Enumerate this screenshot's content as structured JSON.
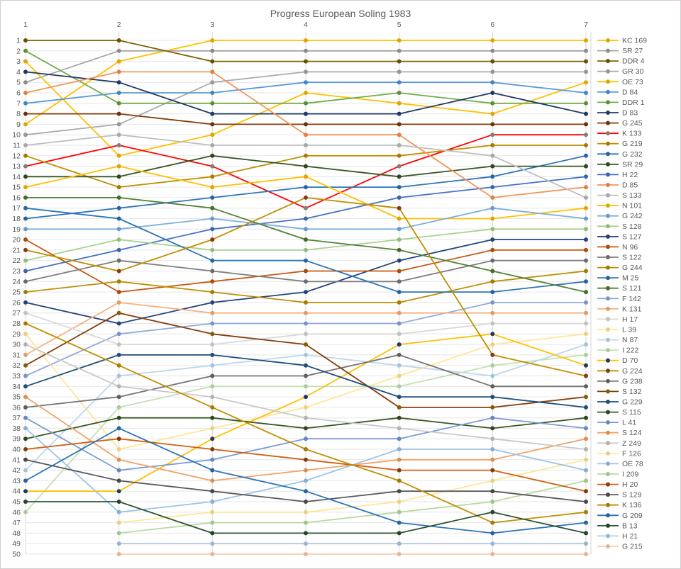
{
  "window": {
    "background": "#FFFFFF",
    "border_color": "#D0CECE",
    "text_color": "#595959",
    "gridline_color_h": "#E6E6E6",
    "gridline_color_v": "#D9D9D9"
  },
  "chart_data": {
    "type": "line",
    "subtype": "bump-chart-positions",
    "title": "Progress European Soling 1983",
    "x_ticks": [
      "1",
      "2",
      "3",
      "4",
      "5",
      "6",
      "7"
    ],
    "y_ticks": [
      "1",
      "2",
      "3",
      "4",
      "5",
      "6",
      "7",
      "8",
      "9",
      "10",
      "11",
      "12",
      "13",
      "14",
      "15",
      "16",
      "17",
      "18",
      "19",
      "20",
      "21",
      "22",
      "23",
      "24",
      "25",
      "26",
      "27",
      "28",
      "29",
      "30",
      "31",
      "32",
      "33",
      "34",
      "35",
      "36",
      "37",
      "38",
      "39",
      "40",
      "41",
      "42",
      "43",
      "44",
      "45",
      "46",
      "47",
      "48",
      "49",
      "50"
    ],
    "y_range": [
      1,
      50
    ],
    "x_range": [
      1,
      7
    ],
    "grid": true,
    "legend_position": "right",
    "series": [
      {
        "name": "KC 169",
        "color": "#FFC000",
        "marker": "#E0A500",
        "values": [
          9,
          3,
          1,
          1,
          1,
          1,
          1
        ]
      },
      {
        "name": "SR 27",
        "color": "#A5A5A5",
        "marker": "#8C8C8C",
        "values": [
          5,
          2,
          2,
          2,
          2,
          2,
          2
        ]
      },
      {
        "name": "DDR 4",
        "color": "#7F6000",
        "marker": "#6B5000",
        "values": [
          1,
          1,
          3,
          3,
          3,
          3,
          3
        ]
      },
      {
        "name": "GR 30",
        "color": "#ABABAB",
        "marker": "#969696",
        "values": [
          10,
          9,
          5,
          4,
          4,
          4,
          4
        ]
      },
      {
        "name": "OE 73",
        "color": "#FFC000",
        "marker": "#E0A500",
        "values": [
          3,
          12,
          10,
          6,
          7,
          8,
          5
        ]
      },
      {
        "name": "D 84",
        "color": "#5B9BD5",
        "marker": "#4285C0",
        "values": [
          7,
          6,
          6,
          5,
          5,
          5,
          6
        ]
      },
      {
        "name": "DDR 1",
        "color": "#70AD47",
        "marker": "#5B9035",
        "values": [
          2,
          7,
          7,
          7,
          6,
          7,
          7
        ]
      },
      {
        "name": "D 83",
        "color": "#1F3864",
        "marker": "#1F3864",
        "values": [
          4,
          5,
          8,
          8,
          8,
          6,
          8
        ]
      },
      {
        "name": "G 245",
        "color": "#843C0C",
        "marker": "#6E3209",
        "values": [
          8,
          8,
          9,
          9,
          9,
          9,
          9
        ]
      },
      {
        "name": "K 133",
        "color": "#FF0000",
        "marker": "#7F7F7F",
        "values": [
          13,
          11,
          13,
          17,
          13,
          10,
          10
        ]
      },
      {
        "name": "G 219",
        "color": "#BF8F00",
        "marker": "#A57B00",
        "values": [
          12,
          15,
          14,
          12,
          12,
          11,
          11
        ]
      },
      {
        "name": "G 232",
        "color": "#2E75B6",
        "marker": "#2764A0",
        "values": [
          18,
          17,
          16,
          15,
          15,
          14,
          12
        ]
      },
      {
        "name": "SR 29",
        "color": "#375623",
        "marker": "#2E481D",
        "values": [
          14,
          14,
          12,
          13,
          14,
          13,
          13
        ]
      },
      {
        "name": "H 22",
        "color": "#4472C4",
        "marker": "#3A63AD",
        "values": [
          23,
          21,
          19,
          18,
          16,
          15,
          14
        ]
      },
      {
        "name": "D 85",
        "color": "#F1975A",
        "marker": "#E08143",
        "values": [
          6,
          4,
          4,
          10,
          10,
          16,
          15
        ]
      },
      {
        "name": "S 133",
        "color": "#BFBFBF",
        "marker": "#A8A8A8",
        "values": [
          11,
          10,
          11,
          11,
          11,
          12,
          16
        ]
      },
      {
        "name": "N 101",
        "color": "#FFC000",
        "marker": "#E0A500",
        "values": [
          15,
          13,
          15,
          14,
          18,
          18,
          17
        ]
      },
      {
        "name": "G 242",
        "color": "#7CAFDD",
        "marker": "#6699CC",
        "values": [
          19,
          19,
          18,
          19,
          19,
          17,
          18
        ]
      },
      {
        "name": "S 128",
        "color": "#A9D18E",
        "marker": "#93BD77",
        "values": [
          22,
          20,
          21,
          21,
          20,
          19,
          19
        ]
      },
      {
        "name": "S 127",
        "color": "#264478",
        "marker": "#264478",
        "values": [
          26,
          28,
          26,
          25,
          22,
          20,
          20
        ]
      },
      {
        "name": "N 96",
        "color": "#C55A11",
        "marker": "#A84C0E",
        "values": [
          20,
          25,
          24,
          23,
          23,
          21,
          21
        ]
      },
      {
        "name": "S 122",
        "color": "#7F7F7F",
        "marker": "#6B6B6B",
        "values": [
          24,
          22,
          23,
          24,
          24,
          22,
          22
        ]
      },
      {
        "name": "G 244",
        "color": "#BF8F00",
        "marker": "#A57B00",
        "values": [
          25,
          24,
          25,
          26,
          26,
          24,
          23
        ]
      },
      {
        "name": "M 25",
        "color": "#2E75B6",
        "marker": "#2764A0",
        "values": [
          17,
          18,
          22,
          22,
          25,
          25,
          24
        ]
      },
      {
        "name": "S 121",
        "color": "#538135",
        "marker": "#456B2C",
        "values": [
          16,
          16,
          17,
          20,
          21,
          23,
          25
        ]
      },
      {
        "name": "F 142",
        "color": "#8FAADC",
        "marker": "#7A93C8",
        "values": [
          33,
          29,
          28,
          28,
          28,
          26,
          26
        ]
      },
      {
        "name": "K 131",
        "color": "#F4B183",
        "marker": "#E29B6A",
        "values": [
          31,
          26,
          27,
          27,
          27,
          27,
          27
        ]
      },
      {
        "name": "H 17",
        "color": "#D9D9D9",
        "marker": "#C2C2C2",
        "values": [
          27,
          30,
          30,
          29,
          29,
          28,
          28
        ]
      },
      {
        "name": "L 39",
        "color": "#FFE699",
        "marker": "#EBD080",
        "values": [
          29,
          40,
          38,
          36,
          33,
          30,
          29
        ]
      },
      {
        "name": "N 87",
        "color": "#BDD7EE",
        "marker": "#A6C3DC",
        "values": [
          42,
          33,
          32,
          31,
          32,
          33,
          30
        ]
      },
      {
        "name": "I 222",
        "color": "#C5E0B4",
        "marker": "#AECB9C",
        "values": [
          46,
          36,
          34,
          34,
          34,
          32,
          31
        ]
      },
      {
        "name": "D 70",
        "color": "#FFC000",
        "marker": "#1F3864",
        "values": [
          44,
          44,
          39,
          35,
          30,
          29,
          32
        ]
      },
      {
        "name": "G 224",
        "color": "#BF8F00",
        "marker": "#843C0C",
        "values": [
          21,
          23,
          20,
          16,
          17,
          31,
          33
        ]
      },
      {
        "name": "G 238",
        "color": "#757575",
        "marker": "#5E5E5E",
        "values": [
          36,
          35,
          33,
          33,
          31,
          34,
          34
        ]
      },
      {
        "name": "S 132",
        "color": "#843C0C",
        "marker": "#7F6000",
        "values": [
          32,
          27,
          29,
          30,
          36,
          36,
          35
        ]
      },
      {
        "name": "G 229",
        "color": "#1F4E79",
        "marker": "#1F4E79",
        "values": [
          34,
          31,
          31,
          32,
          35,
          35,
          36
        ]
      },
      {
        "name": "S 115",
        "color": "#385723",
        "marker": "#2E481D",
        "values": [
          39,
          37,
          37,
          38,
          37,
          38,
          37
        ]
      },
      {
        "name": "L 41",
        "color": "#7C9BD4",
        "marker": "#6786BF",
        "values": [
          37,
          42,
          41,
          39,
          39,
          37,
          38
        ]
      },
      {
        "name": "S 124",
        "color": "#F0A368",
        "marker": "#DE8E51",
        "values": [
          35,
          41,
          43,
          42,
          41,
          41,
          39
        ]
      },
      {
        "name": "Z 249",
        "color": "#C9C9C9",
        "marker": "#B2B2B2",
        "values": [
          30,
          34,
          35,
          37,
          38,
          39,
          40
        ]
      },
      {
        "name": "F 126",
        "color": "#FFE699",
        "marker": "#EBD080",
        "values": [
          null,
          47,
          46,
          46,
          45,
          43,
          41
        ]
      },
      {
        "name": "OE 78",
        "color": "#9DC3E6",
        "marker": "#86AED3",
        "values": [
          38,
          46,
          45,
          43,
          40,
          40,
          42
        ]
      },
      {
        "name": "I 209",
        "color": "#B8DAA2",
        "marker": "#A2C58B",
        "values": [
          null,
          48,
          47,
          47,
          46,
          45,
          43
        ]
      },
      {
        "name": "H 20",
        "color": "#D26012",
        "marker": "#843C0C",
        "values": [
          40,
          39,
          40,
          41,
          42,
          42,
          44
        ]
      },
      {
        "name": "S 129",
        "color": "#595959",
        "marker": "#474747",
        "values": [
          41,
          43,
          44,
          45,
          44,
          44,
          45
        ]
      },
      {
        "name": "K 136",
        "color": "#BF9000",
        "marker": "#A57C00",
        "values": [
          28,
          32,
          36,
          40,
          43,
          47,
          46
        ]
      },
      {
        "name": "G 209",
        "color": "#2C74B8",
        "marker": "#2563A1",
        "values": [
          43,
          38,
          42,
          44,
          47,
          48,
          47
        ]
      },
      {
        "name": "B 13",
        "color": "#2F5233",
        "marker": "#27442B",
        "values": [
          45,
          45,
          48,
          48,
          48,
          46,
          48
        ]
      },
      {
        "name": "H 21",
        "color": "#B4C7E7",
        "marker": "#9DB2D4",
        "values": [
          null,
          49,
          49,
          49,
          49,
          49,
          49
        ]
      },
      {
        "name": "G 215",
        "color": "#F8CBAD",
        "marker": "#E6B596",
        "values": [
          null,
          50,
          50,
          50,
          50,
          50,
          50
        ]
      }
    ]
  }
}
